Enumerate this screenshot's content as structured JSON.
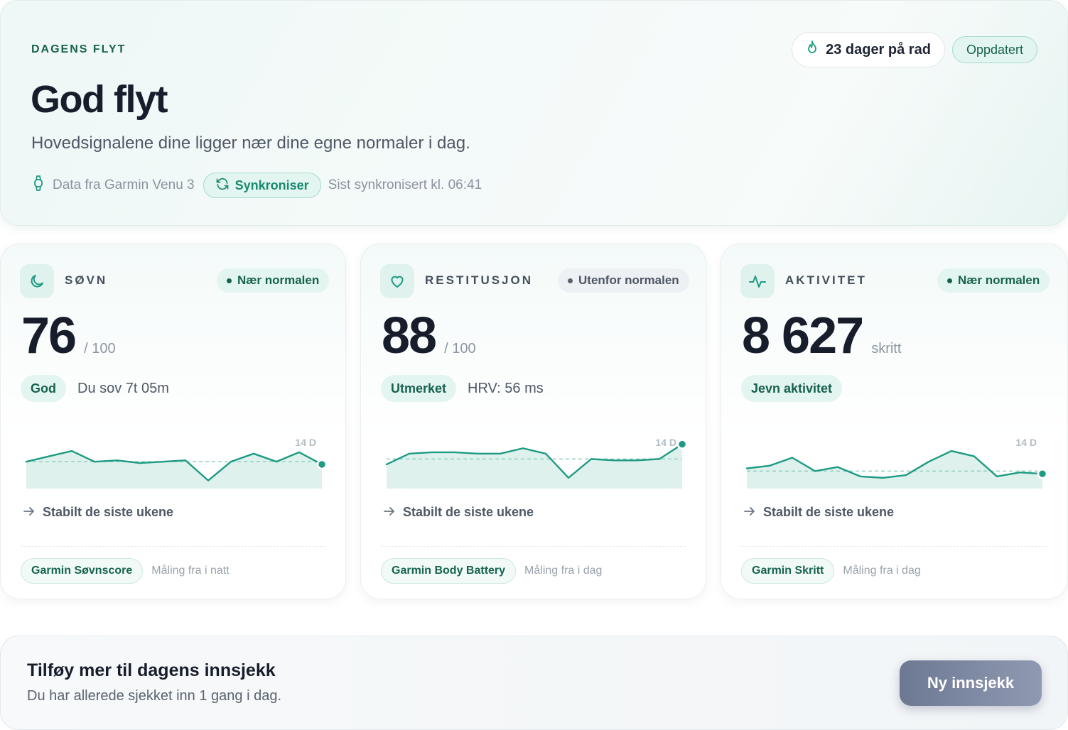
{
  "hero": {
    "eyebrow": "DAGENS FLYT",
    "title": "God flyt",
    "subtitle": "Hovedsignalene dine ligger nær dine egne normaler i dag.",
    "device": "Data fra Garmin Venu 3",
    "sync_label": "Synkroniser",
    "last_sync": "Sist synkronisert kl. 06:41",
    "streak": "23 dager på rad",
    "updated": "Oppdatert"
  },
  "cards": [
    {
      "icon": "moon-icon",
      "label": "SØVN",
      "status": "Nær normalen",
      "value": "76",
      "unit": "/ 100",
      "pill": "God",
      "detail": "Du sov 7t 05m",
      "range_label": "14 D",
      "trend": "Stabilt de siste ukene",
      "source": "Garmin Søvnscore",
      "measured": "Måling fra i natt",
      "sparkline": [
        75,
        79,
        83,
        75,
        76,
        74,
        75,
        76,
        61,
        75,
        81,
        75,
        82,
        73
      ],
      "baseline": 75
    },
    {
      "icon": "heart-icon",
      "label": "RESTITUSJON",
      "status": "Utenfor normalen",
      "value": "88",
      "unit": "/ 100",
      "pill": "Utmerket",
      "detail": "HRV: 56 ms",
      "range_label": "14 D",
      "trend": "Stabilt de siste ukene",
      "source": "Garmin Body Battery",
      "measured": "Måling fra i dag",
      "sparkline": [
        73,
        81,
        82,
        82,
        81,
        81,
        85,
        81,
        63,
        77,
        76,
        76,
        77,
        88
      ],
      "baseline": 77
    },
    {
      "icon": "activity-icon",
      "label": "AKTIVITET",
      "status": "Nær normalen",
      "value": "8 627",
      "unit": "skritt",
      "pill": "Jevn aktivitet",
      "detail": "",
      "range_label": "14 D",
      "trend": "Stabilt de siste ukene",
      "source": "Garmin Skritt",
      "measured": "Måling fra i dag",
      "sparkline": [
        70,
        72,
        78,
        68,
        71,
        64,
        63,
        65,
        75,
        83,
        79,
        64,
        67,
        66
      ],
      "baseline": 68
    }
  ],
  "footer": {
    "title": "Tilføy mer til dagens innsjekk",
    "subtitle": "Du har allerede sjekket inn 1 gang i dag.",
    "cta": "Ny innsjekk"
  },
  "colors": {
    "accent": "#1e9b82",
    "accent_dark": "#17624f",
    "cta_start": "#6d7893",
    "cta_end": "#8f99b1"
  }
}
